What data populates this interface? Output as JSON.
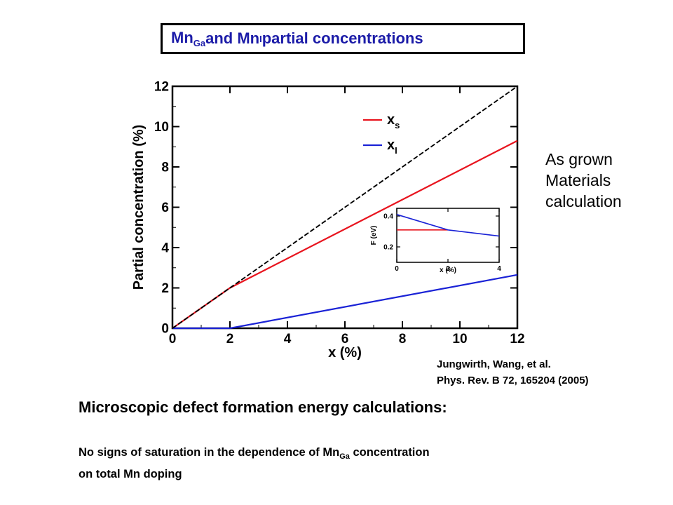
{
  "title": {
    "part1_main": "Mn",
    "part1_sub": "Ga",
    "part2": " and Mn",
    "part2_sub": "I",
    "part3": " partial concentrations"
  },
  "side_note": [
    "As grown",
    "Materials",
    "calculation"
  ],
  "citation": [
    "Jungwirth, Wang, et al.",
    "Phys. Rev. B 72, 165204 (2005)"
  ],
  "heading": "Microscopic defect formation energy calculations:",
  "body": {
    "line1_a": "No signs of saturation in the dependence of Mn",
    "line1_sub": "Ga",
    "line1_b": " concentration",
    "line2": "on total Mn doping"
  },
  "colors": {
    "title": "#1c1ca8",
    "red_series": "#e8141e",
    "blue_series": "#1a22d6",
    "dashed": "#000000"
  },
  "chart_data": [
    {
      "type": "line",
      "xlabel": "x (%)",
      "ylabel": "Partial concentration (%)",
      "xlim": [
        0,
        12
      ],
      "ylim": [
        0,
        12
      ],
      "xticks": [
        "0",
        "2",
        "4",
        "6",
        "8",
        "10",
        "12"
      ],
      "yticks": [
        "0",
        "2",
        "4",
        "6",
        "8",
        "10",
        "12"
      ],
      "legend_position": "top-right",
      "series": [
        {
          "name": "x",
          "name_sub": "s",
          "color": "#e8141e",
          "style": "solid",
          "x": [
            0,
            2,
            12
          ],
          "y": [
            0,
            2,
            9.3
          ]
        },
        {
          "name": "x",
          "name_sub": "I",
          "color": "#1a22d6",
          "style": "solid",
          "x": [
            0,
            2,
            12
          ],
          "y": [
            0,
            0,
            2.65
          ]
        },
        {
          "color": "#000000",
          "style": "dashed",
          "x": [
            0,
            12
          ],
          "y": [
            0,
            12
          ]
        }
      ]
    },
    {
      "type": "line",
      "inset": true,
      "xlabel": "x (%)",
      "ylabel": "F (eV)",
      "xlim": [
        0,
        4
      ],
      "ylim": [
        0.1,
        0.45
      ],
      "xticks": [
        "0",
        "2",
        "4"
      ],
      "yticks": [
        "0.2",
        "0.4"
      ],
      "series": [
        {
          "color": "#e8141e",
          "style": "solid",
          "x": [
            0,
            2
          ],
          "y": [
            0.31,
            0.31
          ]
        },
        {
          "color": "#1a22d6",
          "style": "solid",
          "x": [
            0,
            2,
            4
          ],
          "y": [
            0.41,
            0.31,
            0.27
          ]
        }
      ]
    }
  ]
}
